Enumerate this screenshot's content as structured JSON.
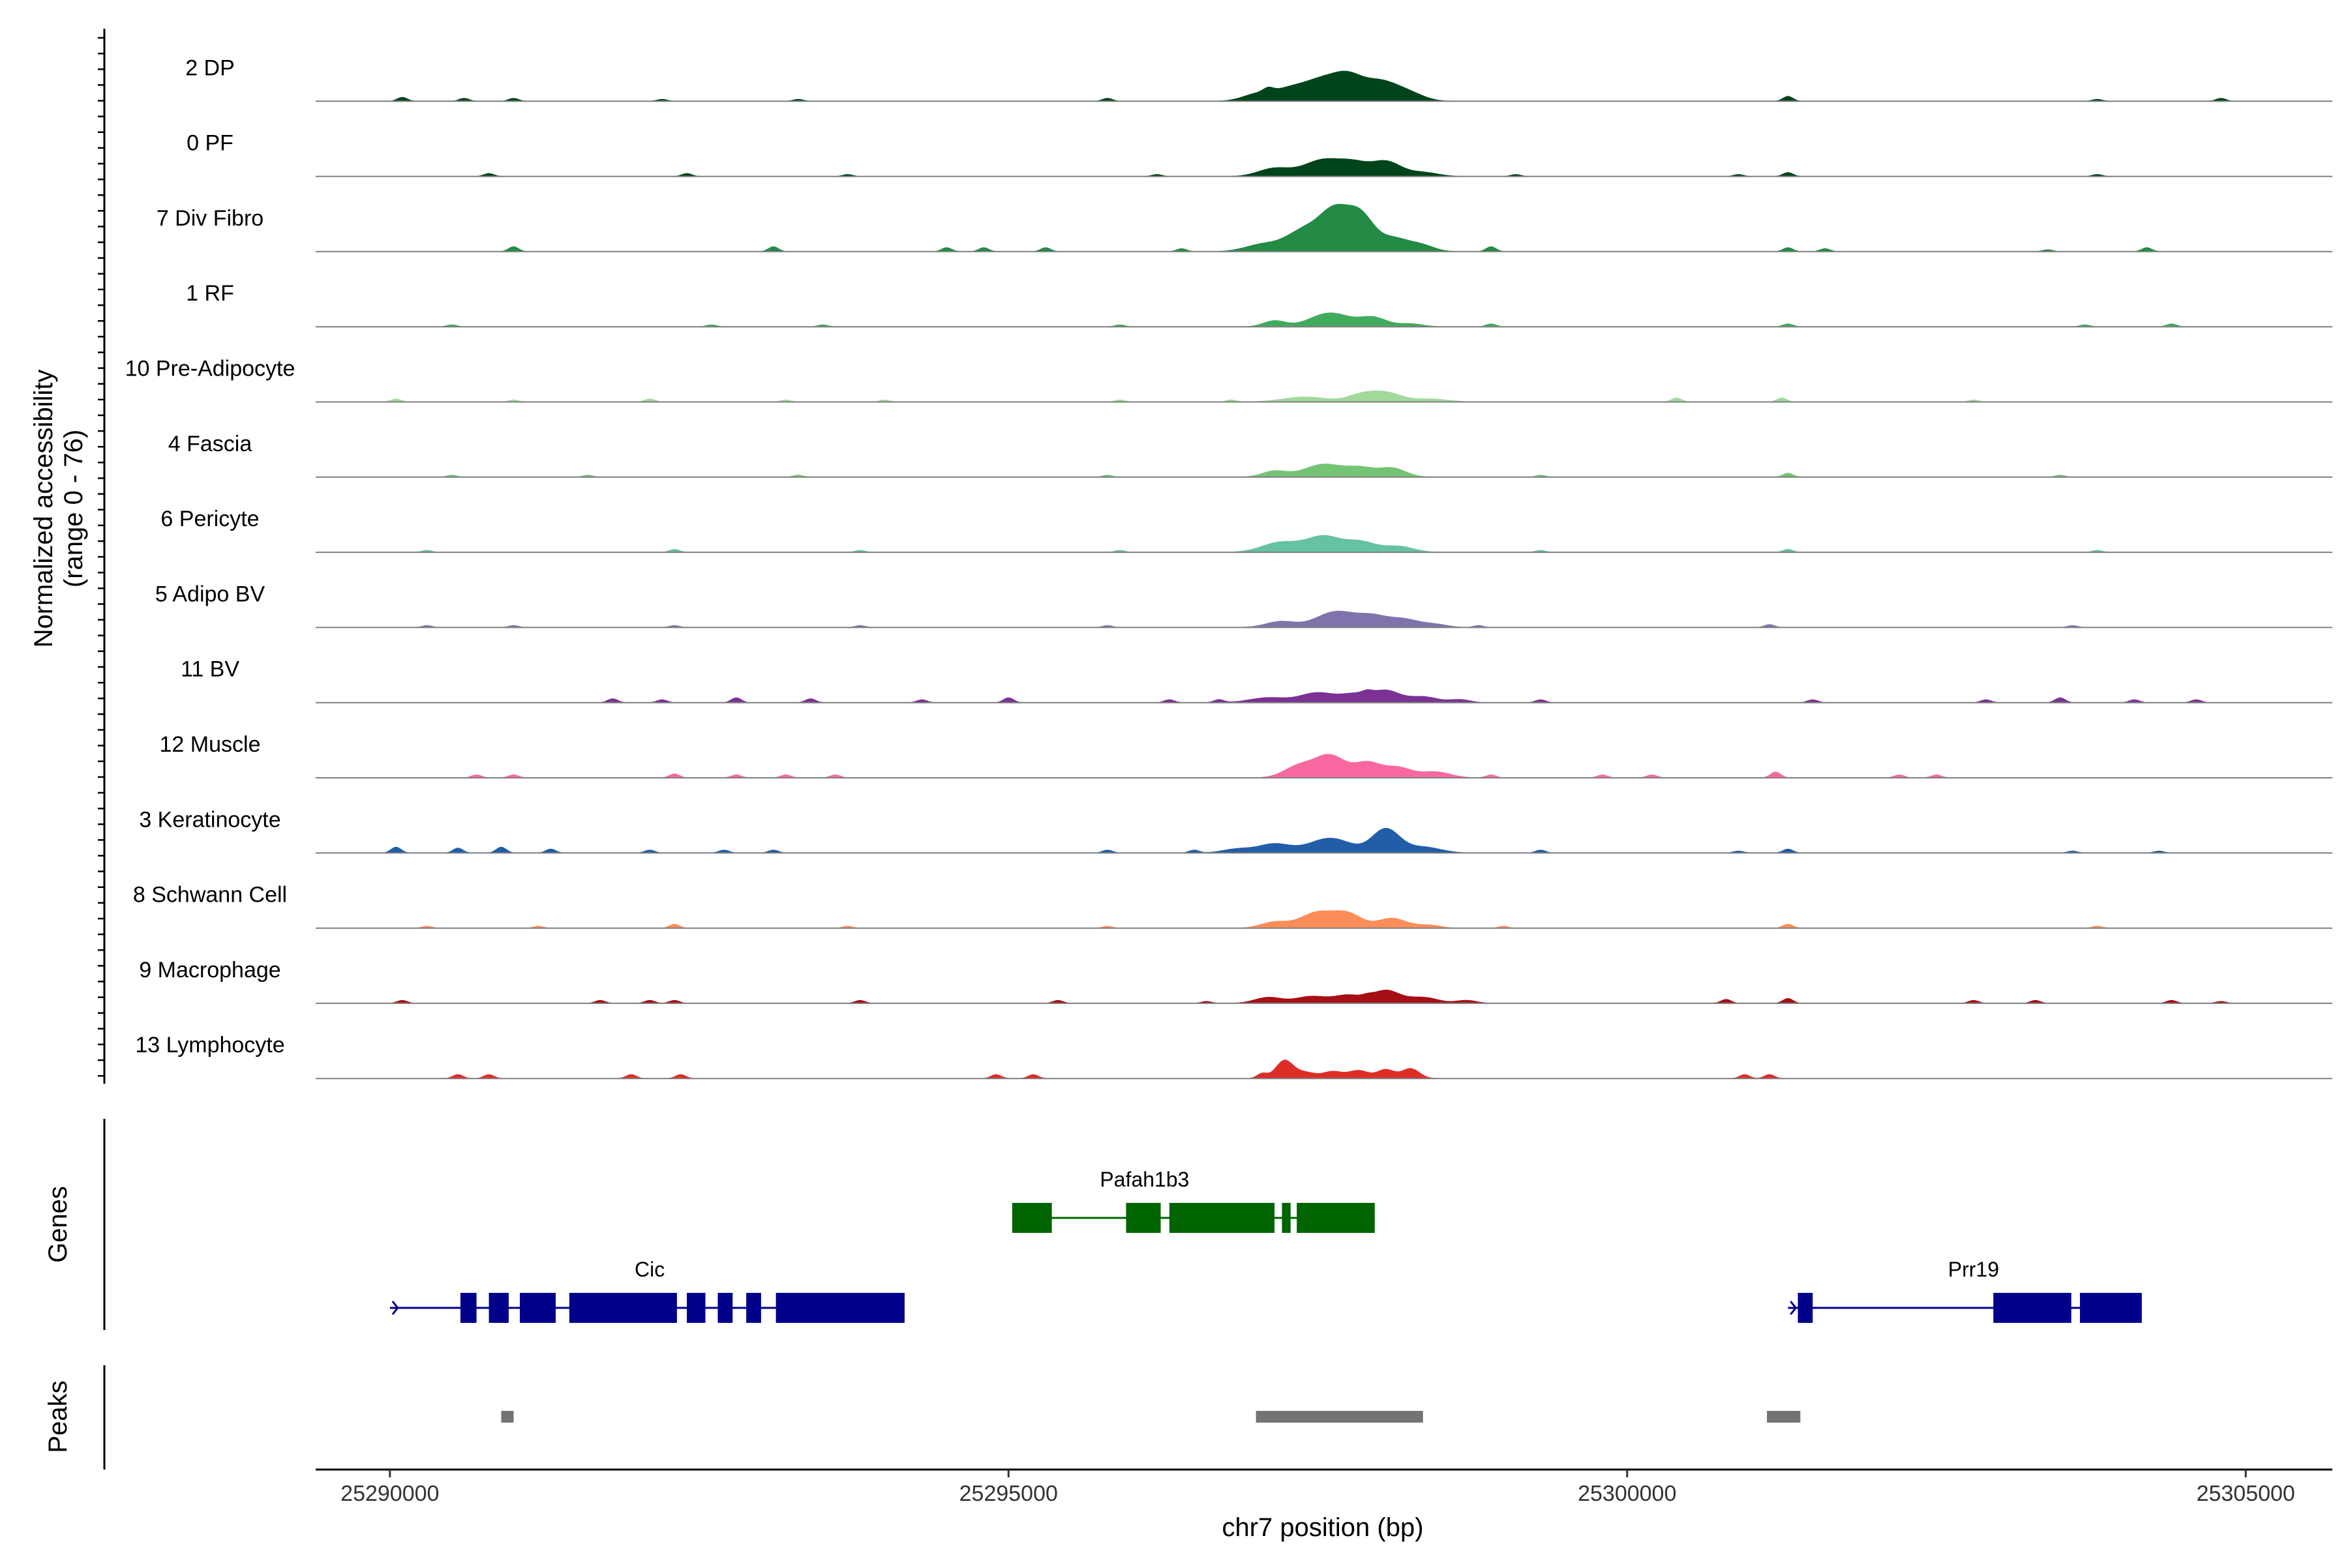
{
  "chart_data": {
    "type": "area",
    "title": "",
    "xlabel": "chr7 position (bp)",
    "ylabel": "Normalized accessibility\n(range 0 - 76)",
    "y_range": [
      0,
      76
    ],
    "xlim": [
      25289400,
      25305700
    ],
    "x_ticks": [
      25290000,
      25295000,
      25300000,
      25305000
    ],
    "x_tick_labels": [
      "25290000",
      "25295000",
      "25300000",
      "25305000"
    ],
    "panel_labels": {
      "genes": "Genes",
      "peaks": "Peaks"
    },
    "series": [
      {
        "name": "2 DP",
        "color": "#00441b",
        "peaks": [
          [
            25297010,
            120,
            7
          ],
          [
            25297260,
            130,
            10
          ],
          [
            25297550,
            160,
            22
          ],
          [
            25297750,
            110,
            15
          ],
          [
            25298000,
            150,
            20
          ],
          [
            25298250,
            120,
            6
          ]
        ],
        "bumps": [
          [
            25290100,
            4
          ],
          [
            25290600,
            3
          ],
          [
            25291000,
            3
          ],
          [
            25292200,
            2
          ],
          [
            25293300,
            2
          ],
          [
            25295800,
            3
          ],
          [
            25297100,
            4
          ],
          [
            25301300,
            5
          ],
          [
            25303800,
            2
          ],
          [
            25304800,
            3
          ]
        ]
      },
      {
        "name": "0 PF",
        "color": "#00441b",
        "peaks": [
          [
            25297150,
            130,
            8
          ],
          [
            25297550,
            160,
            17
          ],
          [
            25297800,
            110,
            10
          ],
          [
            25298050,
            120,
            15
          ],
          [
            25298350,
            120,
            4
          ]
        ],
        "bumps": [
          [
            25290800,
            3
          ],
          [
            25292400,
            3
          ],
          [
            25293700,
            2
          ],
          [
            25296200,
            2
          ],
          [
            25299100,
            2
          ],
          [
            25300900,
            2
          ],
          [
            25301300,
            4
          ],
          [
            25303800,
            2
          ]
        ]
      },
      {
        "name": "7 Div Fibro",
        "color": "#238b45",
        "peaks": [
          [
            25297050,
            140,
            7
          ],
          [
            25297400,
            150,
            22
          ],
          [
            25297650,
            120,
            38
          ],
          [
            25297850,
            100,
            30
          ],
          [
            25298100,
            140,
            14
          ],
          [
            25298350,
            100,
            5
          ]
        ],
        "bumps": [
          [
            25291000,
            5
          ],
          [
            25293100,
            5
          ],
          [
            25294500,
            4
          ],
          [
            25294800,
            4
          ],
          [
            25295300,
            4
          ],
          [
            25296400,
            3
          ],
          [
            25298900,
            5
          ],
          [
            25301300,
            4
          ],
          [
            25301600,
            3
          ],
          [
            25303400,
            2
          ],
          [
            25304200,
            4
          ]
        ]
      },
      {
        "name": "1 RF",
        "color": "#41ab5d",
        "peaks": [
          [
            25297150,
            90,
            6
          ],
          [
            25297600,
            160,
            14
          ],
          [
            25297950,
            110,
            9
          ],
          [
            25298250,
            100,
            3
          ]
        ],
        "bumps": [
          [
            25290500,
            2
          ],
          [
            25292600,
            2
          ],
          [
            25293500,
            2
          ],
          [
            25295900,
            2
          ],
          [
            25298900,
            3
          ],
          [
            25301300,
            3
          ],
          [
            25303700,
            2
          ],
          [
            25304400,
            3
          ]
        ]
      },
      {
        "name": "10 Pre-Adipocyte",
        "color": "#a1d99b",
        "peaks": [
          [
            25297400,
            180,
            5
          ],
          [
            25297850,
            110,
            7
          ],
          [
            25298050,
            120,
            9
          ],
          [
            25298400,
            150,
            3
          ]
        ],
        "bumps": [
          [
            25290050,
            3
          ],
          [
            25291000,
            2
          ],
          [
            25292100,
            3
          ],
          [
            25293200,
            2
          ],
          [
            25294000,
            2
          ],
          [
            25295900,
            2
          ],
          [
            25296800,
            2
          ],
          [
            25300400,
            4
          ],
          [
            25301250,
            4
          ],
          [
            25302800,
            2
          ]
        ]
      },
      {
        "name": "4 Fascia",
        "color": "#74c476",
        "peaks": [
          [
            25297150,
            100,
            6
          ],
          [
            25297550,
            160,
            13
          ],
          [
            25297850,
            110,
            8
          ],
          [
            25298100,
            110,
            9
          ]
        ],
        "bumps": [
          [
            25290500,
            2
          ],
          [
            25291600,
            2
          ],
          [
            25293300,
            2
          ],
          [
            25295800,
            2
          ],
          [
            25299300,
            2
          ],
          [
            25301300,
            4
          ],
          [
            25303500,
            2
          ]
        ]
      },
      {
        "name": "6 Pericyte",
        "color": "#66c2a4",
        "peaks": [
          [
            25297200,
            150,
            10
          ],
          [
            25297550,
            140,
            16
          ],
          [
            25297850,
            120,
            10
          ],
          [
            25298150,
            120,
            6
          ]
        ],
        "bumps": [
          [
            25290300,
            2
          ],
          [
            25292300,
            3
          ],
          [
            25293800,
            2
          ],
          [
            25295900,
            2
          ],
          [
            25299300,
            2
          ],
          [
            25301300,
            3
          ],
          [
            25303800,
            2
          ]
        ]
      },
      {
        "name": "5 Adipo BV",
        "color": "#8073ac",
        "peaks": [
          [
            25297200,
            120,
            6
          ],
          [
            25297650,
            160,
            16
          ],
          [
            25297950,
            120,
            10
          ],
          [
            25298200,
            120,
            8
          ],
          [
            25298450,
            100,
            3
          ]
        ],
        "bumps": [
          [
            25290300,
            2
          ],
          [
            25291000,
            2
          ],
          [
            25292300,
            2
          ],
          [
            25293800,
            2
          ],
          [
            25295800,
            2
          ],
          [
            25298800,
            2
          ],
          [
            25301150,
            3
          ],
          [
            25303600,
            2
          ]
        ]
      },
      {
        "name": "11 BV",
        "color": "#7b3294",
        "peaks": [
          [
            25297100,
            150,
            5
          ],
          [
            25297500,
            140,
            10
          ],
          [
            25297800,
            110,
            8
          ],
          [
            25298050,
            110,
            12
          ],
          [
            25298350,
            120,
            6
          ],
          [
            25298650,
            80,
            3
          ]
        ],
        "bumps": [
          [
            25291800,
            4
          ],
          [
            25292200,
            3
          ],
          [
            25292800,
            5
          ],
          [
            25293400,
            4
          ],
          [
            25294300,
            3
          ],
          [
            25295000,
            5
          ],
          [
            25296300,
            3
          ],
          [
            25296700,
            3
          ],
          [
            25297900,
            3
          ],
          [
            25299300,
            3
          ],
          [
            25301500,
            3
          ],
          [
            25302900,
            3
          ],
          [
            25303500,
            5
          ],
          [
            25304100,
            3
          ],
          [
            25304600,
            3
          ]
        ]
      },
      {
        "name": "12 Muscle",
        "color": "#f768a1",
        "peaks": [
          [
            25297350,
            120,
            12
          ],
          [
            25297600,
            120,
            22
          ],
          [
            25297900,
            110,
            15
          ],
          [
            25298150,
            110,
            10
          ],
          [
            25298450,
            120,
            6
          ]
        ],
        "bumps": [
          [
            25290700,
            3
          ],
          [
            25291000,
            3
          ],
          [
            25292300,
            4
          ],
          [
            25292800,
            3
          ],
          [
            25293200,
            3
          ],
          [
            25293600,
            3
          ],
          [
            25298900,
            3
          ],
          [
            25299800,
            3
          ],
          [
            25300200,
            3
          ],
          [
            25301200,
            6
          ],
          [
            25302200,
            3
          ],
          [
            25302500,
            3
          ]
        ]
      },
      {
        "name": "3 Keratinocyte",
        "color": "#225ea8",
        "peaks": [
          [
            25296850,
            120,
            4
          ],
          [
            25297150,
            130,
            9
          ],
          [
            25297600,
            170,
            15
          ],
          [
            25298050,
            110,
            24
          ],
          [
            25298350,
            140,
            6
          ]
        ],
        "bumps": [
          [
            25290050,
            6
          ],
          [
            25290550,
            5
          ],
          [
            25290900,
            6
          ],
          [
            25291300,
            4
          ],
          [
            25292100,
            3
          ],
          [
            25292700,
            3
          ],
          [
            25293100,
            3
          ],
          [
            25295800,
            3
          ],
          [
            25296500,
            3
          ],
          [
            25299300,
            3
          ],
          [
            25300900,
            2
          ],
          [
            25301300,
            4
          ],
          [
            25303600,
            2
          ],
          [
            25304300,
            2
          ]
        ]
      },
      {
        "name": "8 Schwann Cell",
        "color": "#fc8d59",
        "peaks": [
          [
            25297150,
            110,
            6
          ],
          [
            25297500,
            140,
            16
          ],
          [
            25297750,
            110,
            13
          ],
          [
            25298100,
            120,
            10
          ],
          [
            25298400,
            90,
            3
          ]
        ],
        "bumps": [
          [
            25290300,
            2
          ],
          [
            25291200,
            2
          ],
          [
            25292300,
            4
          ],
          [
            25293700,
            2
          ],
          [
            25295800,
            2
          ],
          [
            25299000,
            2
          ],
          [
            25301300,
            4
          ],
          [
            25303800,
            2
          ]
        ]
      },
      {
        "name": "9 Macrophage",
        "color": "#a50f15",
        "peaks": [
          [
            25297100,
            110,
            6
          ],
          [
            25297450,
            130,
            7
          ],
          [
            25297750,
            110,
            8
          ],
          [
            25298050,
            110,
            13
          ],
          [
            25298350,
            120,
            6
          ],
          [
            25298700,
            80,
            3
          ]
        ],
        "bumps": [
          [
            25290100,
            3
          ],
          [
            25291700,
            3
          ],
          [
            25292100,
            3
          ],
          [
            25292300,
            3
          ],
          [
            25293800,
            3
          ],
          [
            25295400,
            3
          ],
          [
            25296600,
            2
          ],
          [
            25297900,
            2
          ],
          [
            25300800,
            4
          ],
          [
            25301300,
            5
          ],
          [
            25302800,
            3
          ],
          [
            25303300,
            3
          ],
          [
            25304400,
            3
          ],
          [
            25304800,
            2
          ]
        ]
      },
      {
        "name": "13 Lymphocyte",
        "color": "#de2d26",
        "peaks": [
          [
            25297050,
            40,
            5
          ],
          [
            25297230,
            70,
            18
          ],
          [
            25297400,
            80,
            6
          ],
          [
            25297620,
            80,
            7
          ],
          [
            25297830,
            80,
            8
          ],
          [
            25298050,
            70,
            9
          ],
          [
            25298250,
            70,
            10
          ]
        ],
        "bumps": [
          [
            25290550,
            4
          ],
          [
            25290800,
            4
          ],
          [
            25291950,
            4
          ],
          [
            25292350,
            4
          ],
          [
            25294900,
            4
          ],
          [
            25295200,
            4
          ],
          [
            25300950,
            4
          ],
          [
            25301150,
            4
          ]
        ]
      }
    ],
    "genes": [
      {
        "name": "Pafah1b3",
        "strand": "-",
        "row": 0,
        "color": "#006400",
        "start": 25295030,
        "end": 25297960,
        "exons": [
          [
            25295030,
            25295350
          ],
          [
            25295950,
            25296230
          ],
          [
            25296300,
            25297150
          ],
          [
            25297210,
            25297280
          ],
          [
            25297330,
            25297960
          ]
        ]
      },
      {
        "name": "Cic",
        "strand": "+",
        "row": 1,
        "color": "#00008b",
        "start": 25290000,
        "end": 25294160,
        "exons": [
          [
            25290570,
            25290700
          ],
          [
            25290800,
            25290960
          ],
          [
            25291050,
            25291340
          ],
          [
            25291450,
            25292320
          ],
          [
            25292400,
            25292550
          ],
          [
            25292650,
            25292770
          ],
          [
            25292880,
            25293000
          ],
          [
            25293120,
            25294160
          ]
        ]
      },
      {
        "name": "Prr19",
        "strand": "+",
        "row": 1,
        "color": "#00008b",
        "start": 25301300,
        "end": 25304160,
        "exons": [
          [
            25301380,
            25301500
          ],
          [
            25302960,
            25303590
          ],
          [
            25303660,
            25304160
          ]
        ]
      }
    ],
    "peaks": [
      [
        25290900,
        25291000
      ],
      [
        25297000,
        25298350
      ],
      [
        25301130,
        25301400
      ]
    ]
  }
}
